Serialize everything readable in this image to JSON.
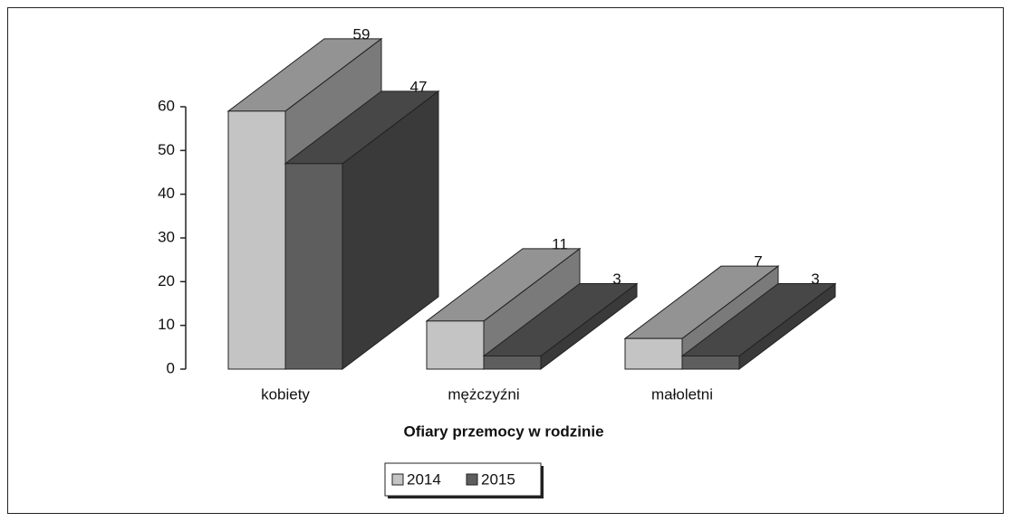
{
  "chart_data": {
    "type": "bar3d",
    "xlabel": "Ofiary przemocy w rodzinie",
    "categories": [
      "kobiety",
      "mężczyźni",
      "małoletni"
    ],
    "series": [
      {
        "name": "2014",
        "color": "#c4c4c4",
        "values": [
          59,
          11,
          7
        ]
      },
      {
        "name": "2015",
        "color": "#5e5e5e",
        "values": [
          47,
          3,
          3
        ]
      }
    ],
    "ylim": [
      0,
      60
    ],
    "yticks": [
      0,
      10,
      20,
      30,
      40,
      50,
      60
    ],
    "legend": "bottom"
  }
}
